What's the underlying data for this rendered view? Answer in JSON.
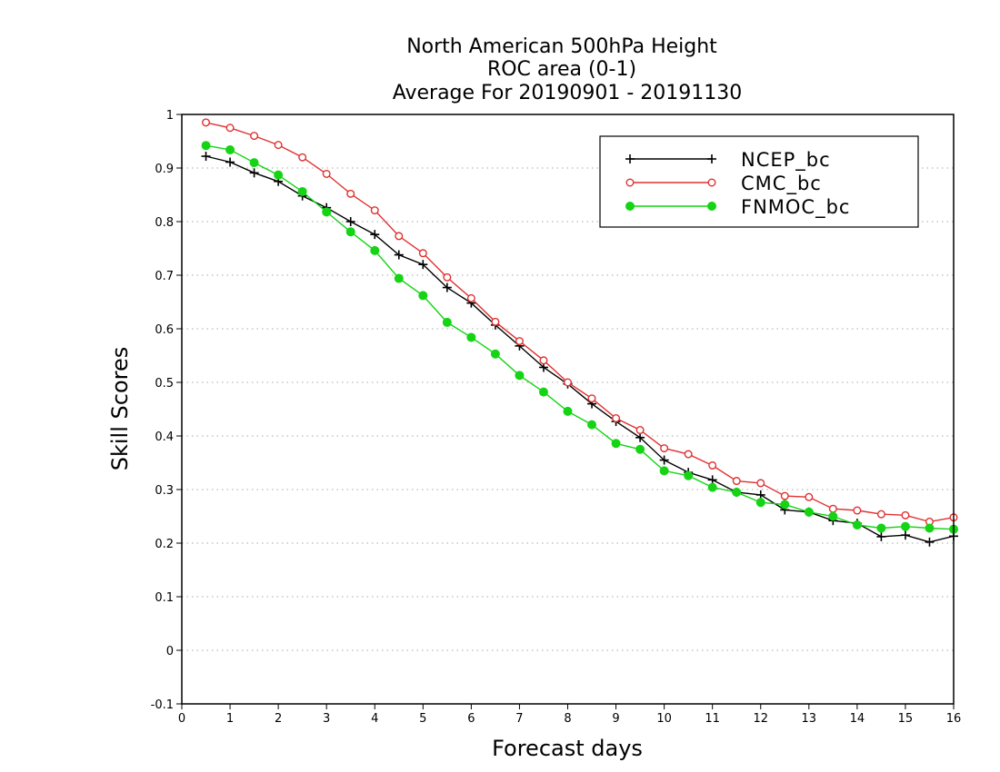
{
  "chart_data": {
    "type": "line",
    "title": [
      "North American 500hPa Height",
      "ROC area (0-1)",
      "Average For 20190901 - 20191130"
    ],
    "xlabel": "Forecast days",
    "ylabel": "Skill Scores",
    "xlim": [
      0,
      16
    ],
    "ylim": [
      -0.1,
      1
    ],
    "xticks": [
      "0",
      "1",
      "2",
      "3",
      "4",
      "5",
      "6",
      "7",
      "8",
      "9",
      "10",
      "11",
      "12",
      "13",
      "14",
      "15",
      "16"
    ],
    "yticks": [
      "-0.1",
      "0",
      "0.1",
      "0.2",
      "0.3",
      "0.4",
      "0.5",
      "0.6",
      "0.7",
      "0.8",
      "0.9",
      "1"
    ],
    "grid": "horizontal-dotted",
    "legend_position": "top-right",
    "x": [
      0.5,
      1,
      1.5,
      2,
      2.5,
      3,
      3.5,
      4,
      4.5,
      5,
      5.5,
      6,
      6.5,
      7,
      7.5,
      8,
      8.5,
      9,
      9.5,
      10,
      10.5,
      11,
      11.5,
      12,
      12.5,
      13,
      13.5,
      14,
      14.5,
      15,
      15.5,
      16
    ],
    "series": [
      {
        "name": "NCEP_bc",
        "color": "#000000",
        "marker": "plus",
        "values": [
          0.922,
          0.911,
          0.891,
          0.875,
          0.848,
          0.826,
          0.8,
          0.776,
          0.738,
          0.72,
          0.677,
          0.648,
          0.607,
          0.568,
          0.528,
          0.497,
          0.46,
          0.427,
          0.397,
          0.355,
          0.332,
          0.318,
          0.295,
          0.29,
          0.262,
          0.258,
          0.242,
          0.237,
          0.212,
          0.215,
          0.202,
          0.213
        ]
      },
      {
        "name": "CMC_bc",
        "color": "#e03030",
        "marker": "open-circle",
        "values": [
          0.985,
          0.975,
          0.96,
          0.943,
          0.92,
          0.889,
          0.852,
          0.821,
          0.773,
          0.741,
          0.696,
          0.657,
          0.613,
          0.577,
          0.541,
          0.5,
          0.47,
          0.433,
          0.411,
          0.377,
          0.366,
          0.345,
          0.316,
          0.312,
          0.288,
          0.286,
          0.264,
          0.261,
          0.254,
          0.252,
          0.24,
          0.248
        ]
      },
      {
        "name": "FNMOC_bc",
        "color": "#14d414",
        "marker": "filled-circle",
        "values": [
          0.942,
          0.934,
          0.91,
          0.887,
          0.856,
          0.818,
          0.781,
          0.746,
          0.694,
          0.662,
          0.612,
          0.584,
          0.553,
          0.513,
          0.482,
          0.446,
          0.421,
          0.386,
          0.375,
          0.335,
          0.326,
          0.304,
          0.295,
          0.276,
          0.272,
          0.258,
          0.25,
          0.234,
          0.228,
          0.231,
          0.228,
          0.226
        ]
      }
    ]
  }
}
